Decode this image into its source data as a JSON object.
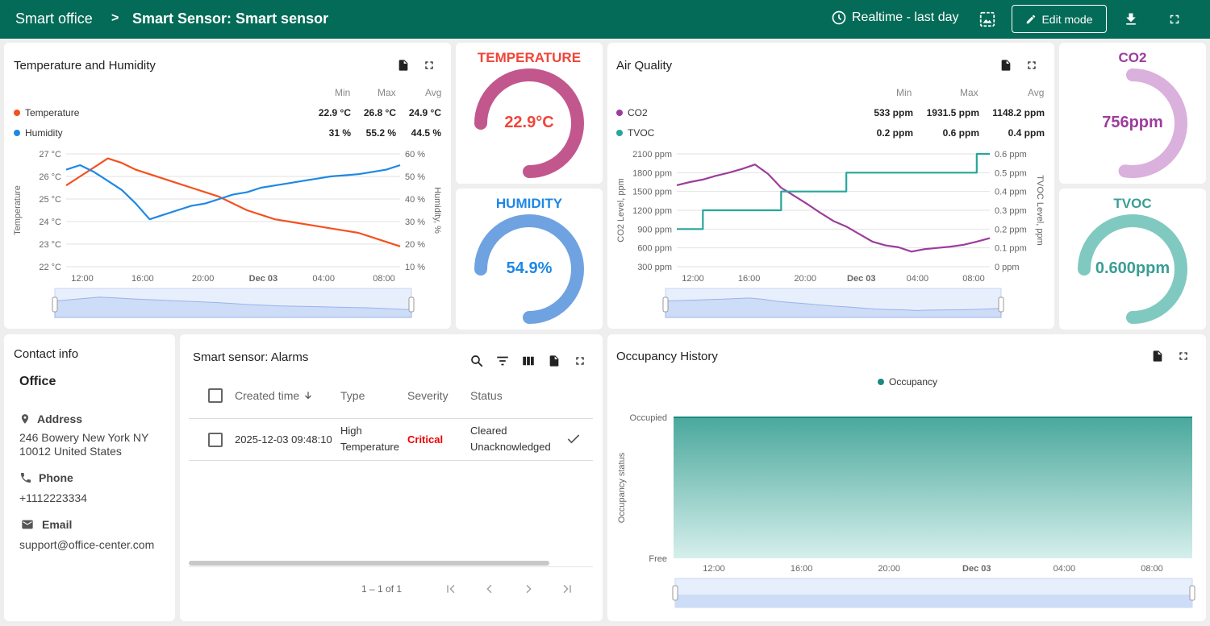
{
  "header": {
    "root": "Smart office",
    "separator": ">",
    "title": "Smart Sensor: Smart sensor",
    "timewindow": "Realtime - last day",
    "edit_mode": "Edit mode"
  },
  "temp_hum": {
    "title": "Temperature and Humidity",
    "col_min": "Min",
    "col_max": "Max",
    "col_avg": "Avg",
    "series": [
      {
        "name": "Temperature",
        "min": "22.9 °C",
        "max": "26.8 °C",
        "avg": "24.9 °C",
        "color": "#f4511e"
      },
      {
        "name": "Humidity",
        "min": "31 %",
        "max": "55.2 %",
        "avg": "44.5 %",
        "color": "#1e88e5"
      }
    ],
    "y_left_label": "Temperature",
    "y_right_label": "Humidity, %",
    "y_left_ticks": [
      "27 °C",
      "26 °C",
      "25 °C",
      "24 °C",
      "23 °C",
      "22 °C"
    ],
    "y_right_ticks": [
      "60 %",
      "50 %",
      "40 %",
      "30 %",
      "20 %",
      "10 %"
    ],
    "x_ticks": [
      "12:00",
      "16:00",
      "20:00",
      "Dec 03",
      "04:00",
      "08:00"
    ]
  },
  "gauge_temperature": {
    "title": "TEMPERATURE",
    "value": "22.9°C",
    "color": "#f0453a",
    "arc_color": "#c2578e",
    "fraction": 0.55
  },
  "gauge_humidity": {
    "title": "HUMIDITY",
    "value": "54.9%",
    "color": "#1e88e5",
    "arc_color": "#6fa2e0",
    "fraction": 0.55
  },
  "air_quality": {
    "title": "Air Quality",
    "col_min": "Min",
    "col_max": "Max",
    "col_avg": "Avg",
    "series": [
      {
        "name": "CO2",
        "min": "533 ppm",
        "max": "1931.5 ppm",
        "avg": "1148.2 ppm",
        "color": "#9c3d9c"
      },
      {
        "name": "TVOC",
        "min": "0.2 ppm",
        "max": "0.6 ppm",
        "avg": "0.4 ppm",
        "color": "#26a69a"
      }
    ],
    "y_left_label": "CO2 Level, ppm",
    "y_right_label": "TVOC Level, ppm",
    "y_left_ticks": [
      "2100 ppm",
      "1800 ppm",
      "1500 ppm",
      "1200 ppm",
      "900 ppm",
      "600 ppm",
      "300 ppm"
    ],
    "y_right_ticks": [
      "0.6 ppm",
      "0.5 ppm",
      "0.4 ppm",
      "0.3 ppm",
      "0.2 ppm",
      "0.1 ppm",
      "0 ppm"
    ],
    "x_ticks": [
      "12:00",
      "16:00",
      "20:00",
      "Dec 03",
      "04:00",
      "08:00"
    ]
  },
  "gauge_co2": {
    "title": "CO2",
    "value": "756ppm",
    "color": "#9c3d9c",
    "arc_color": "#dab0dc",
    "fraction": 0.33
  },
  "gauge_tvoc": {
    "title": "TVOC",
    "value": "0.600ppm",
    "color": "#3a9e95",
    "arc_color": "#80c9c0",
    "fraction": 0.6
  },
  "contact": {
    "title": "Contact info",
    "office": "Office",
    "address_label": "Address",
    "address": "246 Bowery New York NY 10012 United States",
    "phone_label": "Phone",
    "phone": "+1112223334",
    "email_label": "Email",
    "email": "support@office-center.com"
  },
  "alarms": {
    "title": "Smart sensor: Alarms",
    "columns": {
      "created": "Created time",
      "type": "Type",
      "severity": "Severity",
      "status": "Status"
    },
    "rows": [
      {
        "created": "2025-12-03 09:48:10",
        "type_line1": "High",
        "type_line2": "Temperature",
        "severity": "Critical",
        "status_line1": "Cleared",
        "status_line2": "Unacknowledged"
      }
    ],
    "pagination": "1 – 1 of 1"
  },
  "occupancy": {
    "title": "Occupancy History",
    "legend": "Occupancy",
    "y_label": "Occupancy status",
    "y_top": "Occupied",
    "y_bottom": "Free",
    "x_ticks": [
      "12:00",
      "16:00",
      "20:00",
      "Dec 03",
      "04:00",
      "08:00"
    ]
  },
  "chart_data": [
    {
      "type": "line",
      "title": "Temperature and Humidity",
      "ylabel": "Temperature",
      "ylabel_right": "Humidity, %",
      "ylim": [
        22,
        27
      ],
      "ylim_right": [
        10,
        60
      ],
      "x": [
        "10:00",
        "11:00",
        "12:00",
        "13:00",
        "14:00",
        "15:00",
        "16:00",
        "17:00",
        "18:00",
        "19:00",
        "20:00",
        "21:00",
        "22:00",
        "23:00",
        "00:00",
        "01:00",
        "02:00",
        "03:00",
        "04:00",
        "05:00",
        "06:00",
        "07:00",
        "08:00",
        "09:00",
        "09:48"
      ],
      "series": [
        {
          "name": "Temperature",
          "axis": "left",
          "values": [
            25.6,
            26.0,
            26.4,
            26.8,
            26.6,
            26.3,
            26.1,
            25.9,
            25.7,
            25.5,
            25.3,
            25.1,
            24.8,
            24.5,
            24.3,
            24.1,
            24.0,
            23.9,
            23.8,
            23.7,
            23.6,
            23.5,
            23.3,
            23.1,
            22.9
          ]
        },
        {
          "name": "Humidity",
          "axis": "right",
          "values": [
            53,
            55,
            52,
            48,
            44,
            38,
            31,
            33,
            35,
            37,
            38,
            40,
            42,
            43,
            45,
            46,
            47,
            48,
            49,
            50,
            50.5,
            51,
            52,
            53,
            55
          ]
        }
      ]
    },
    {
      "type": "line",
      "title": "Air Quality",
      "ylabel": "CO2 Level, ppm",
      "ylabel_right": "TVOC Level, ppm",
      "ylim": [
        300,
        2100
      ],
      "ylim_right": [
        0,
        0.6
      ],
      "x": [
        "10:00",
        "11:00",
        "12:00",
        "13:00",
        "14:00",
        "15:00",
        "16:00",
        "17:00",
        "18:00",
        "19:00",
        "20:00",
        "21:00",
        "22:00",
        "23:00",
        "00:00",
        "01:00",
        "02:00",
        "03:00",
        "04:00",
        "05:00",
        "06:00",
        "07:00",
        "08:00",
        "09:00",
        "09:48"
      ],
      "series": [
        {
          "name": "CO2",
          "axis": "left",
          "values": [
            1600,
            1650,
            1690,
            1750,
            1800,
            1860,
            1930,
            1780,
            1560,
            1430,
            1300,
            1160,
            1030,
            940,
            820,
            700,
            640,
            610,
            540,
            580,
            600,
            620,
            650,
            700,
            756
          ]
        },
        {
          "name": "TVOC",
          "axis": "right",
          "values": [
            0.2,
            0.2,
            0.3,
            0.3,
            0.3,
            0.3,
            0.3,
            0.3,
            0.4,
            0.4,
            0.4,
            0.4,
            0.4,
            0.5,
            0.5,
            0.5,
            0.5,
            0.5,
            0.5,
            0.5,
            0.5,
            0.5,
            0.5,
            0.6,
            0.6
          ]
        }
      ]
    },
    {
      "type": "area",
      "title": "Occupancy History",
      "ylabel": "Occupancy status",
      "y_categories": [
        "Free",
        "Occupied"
      ],
      "x": [
        "10:00",
        "09:48"
      ],
      "series": [
        {
          "name": "Occupancy",
          "values": [
            "Occupied",
            "Occupied"
          ]
        }
      ]
    }
  ]
}
